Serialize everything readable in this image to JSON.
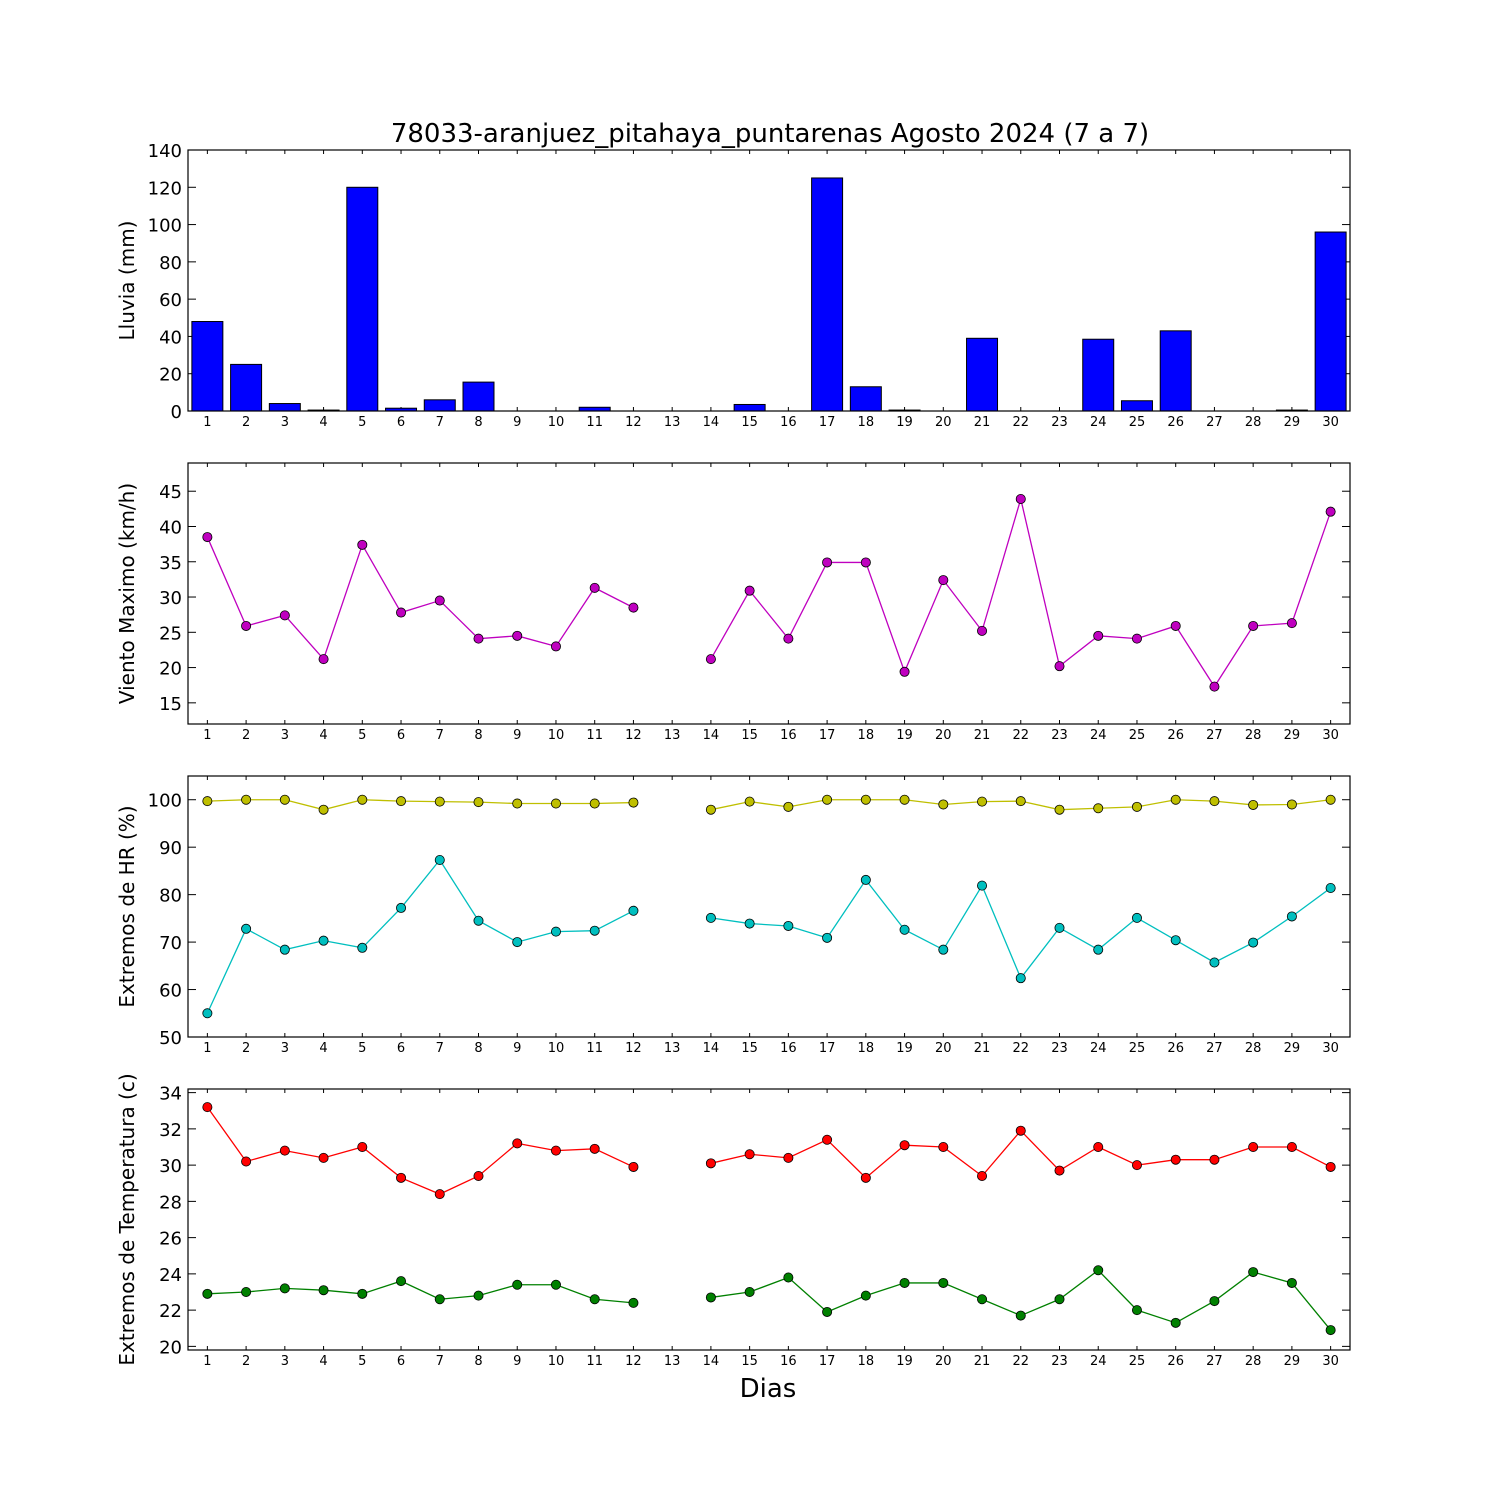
{
  "title": "78033-aranjuez_pitahaya_puntarenas Agosto 2024  (7 a 7)",
  "xlabel": "Dias",
  "chart_data": [
    {
      "type": "bar",
      "ylabel": "Lluvia (mm)",
      "ylim": [
        0,
        140
      ],
      "yticks": [
        0,
        20,
        40,
        60,
        80,
        100,
        120,
        140
      ],
      "x": [
        1,
        2,
        3,
        4,
        5,
        6,
        7,
        8,
        9,
        10,
        11,
        12,
        13,
        14,
        15,
        16,
        17,
        18,
        19,
        20,
        21,
        22,
        23,
        24,
        25,
        26,
        27,
        28,
        29,
        30
      ],
      "series": [
        {
          "color": "#0000ff",
          "values": [
            48,
            25,
            4,
            0.5,
            120,
            1.5,
            6,
            15.5,
            0,
            0,
            2,
            0,
            0,
            0,
            3.5,
            0,
            125,
            13,
            0.5,
            0,
            39,
            0,
            0,
            38.5,
            5.5,
            43,
            0,
            0,
            0.5,
            96
          ]
        }
      ]
    },
    {
      "type": "line",
      "ylabel": "Viento Maximo (km/h)",
      "ylim": [
        12,
        49
      ],
      "yticks": [
        15,
        20,
        25,
        30,
        35,
        40,
        45
      ],
      "x": [
        1,
        2,
        3,
        4,
        5,
        6,
        7,
        8,
        9,
        10,
        11,
        12,
        13,
        14,
        15,
        16,
        17,
        18,
        19,
        20,
        21,
        22,
        23,
        24,
        25,
        26,
        27,
        28,
        29,
        30
      ],
      "series": [
        {
          "color": "#bf00bf",
          "values": [
            38.5,
            25.9,
            27.4,
            21.2,
            37.4,
            27.8,
            29.5,
            24.1,
            24.5,
            23.0,
            31.3,
            28.5,
            null,
            21.2,
            30.9,
            24.1,
            34.9,
            34.9,
            19.4,
            32.4,
            25.2,
            43.9,
            20.2,
            24.5,
            24.1,
            25.9,
            17.3,
            25.9,
            26.3,
            42.1
          ]
        }
      ]
    },
    {
      "type": "line",
      "ylabel": "Extremos de HR (%)",
      "ylim": [
        50,
        105
      ],
      "yticks": [
        50,
        60,
        70,
        80,
        90,
        100
      ],
      "x": [
        1,
        2,
        3,
        4,
        5,
        6,
        7,
        8,
        9,
        10,
        11,
        12,
        13,
        14,
        15,
        16,
        17,
        18,
        19,
        20,
        21,
        22,
        23,
        24,
        25,
        26,
        27,
        28,
        29,
        30
      ],
      "series": [
        {
          "color": "#bfbf00",
          "values": [
            99.7,
            100,
            100,
            97.9,
            100,
            99.7,
            99.6,
            99.5,
            99.2,
            99.2,
            99.2,
            99.4,
            null,
            97.9,
            99.6,
            98.5,
            100,
            100,
            100,
            99,
            99.6,
            99.7,
            97.9,
            98.2,
            98.5,
            100,
            99.7,
            98.9,
            99,
            100
          ]
        },
        {
          "color": "#00bfbf",
          "values": [
            55,
            72.8,
            68.4,
            70.3,
            68.8,
            77.2,
            87.3,
            74.5,
            70,
            72.2,
            72.4,
            76.6,
            null,
            75.1,
            73.9,
            73.4,
            70.9,
            83.1,
            72.6,
            68.4,
            81.9,
            62.4,
            73,
            68.4,
            75.1,
            70.4,
            65.7,
            69.9,
            75.4,
            81.4
          ]
        }
      ]
    },
    {
      "type": "line",
      "ylabel": "Extremos de Temperatura (c)",
      "ylim": [
        19.8,
        34.2
      ],
      "yticks": [
        20,
        22,
        24,
        26,
        28,
        30,
        32,
        34
      ],
      "x": [
        1,
        2,
        3,
        4,
        5,
        6,
        7,
        8,
        9,
        10,
        11,
        12,
        13,
        14,
        15,
        16,
        17,
        18,
        19,
        20,
        21,
        22,
        23,
        24,
        25,
        26,
        27,
        28,
        29,
        30
      ],
      "series": [
        {
          "color": "#ff0000",
          "values": [
            33.2,
            30.2,
            30.8,
            30.4,
            31,
            29.3,
            28.4,
            29.4,
            31.2,
            30.8,
            30.9,
            29.9,
            null,
            30.1,
            30.6,
            30.4,
            31.4,
            29.3,
            31.1,
            31,
            29.4,
            31.9,
            29.7,
            31,
            30,
            30.3,
            30.3,
            31,
            31,
            29.9
          ]
        },
        {
          "color": "#008000",
          "values": [
            22.9,
            23,
            23.2,
            23.1,
            22.9,
            23.6,
            22.6,
            22.8,
            23.4,
            23.4,
            22.6,
            22.4,
            null,
            22.7,
            23,
            23.8,
            21.9,
            22.8,
            23.5,
            23.5,
            22.6,
            21.7,
            22.6,
            24.2,
            22,
            21.3,
            22.5,
            24.1,
            23.5,
            20.9
          ]
        }
      ]
    }
  ]
}
